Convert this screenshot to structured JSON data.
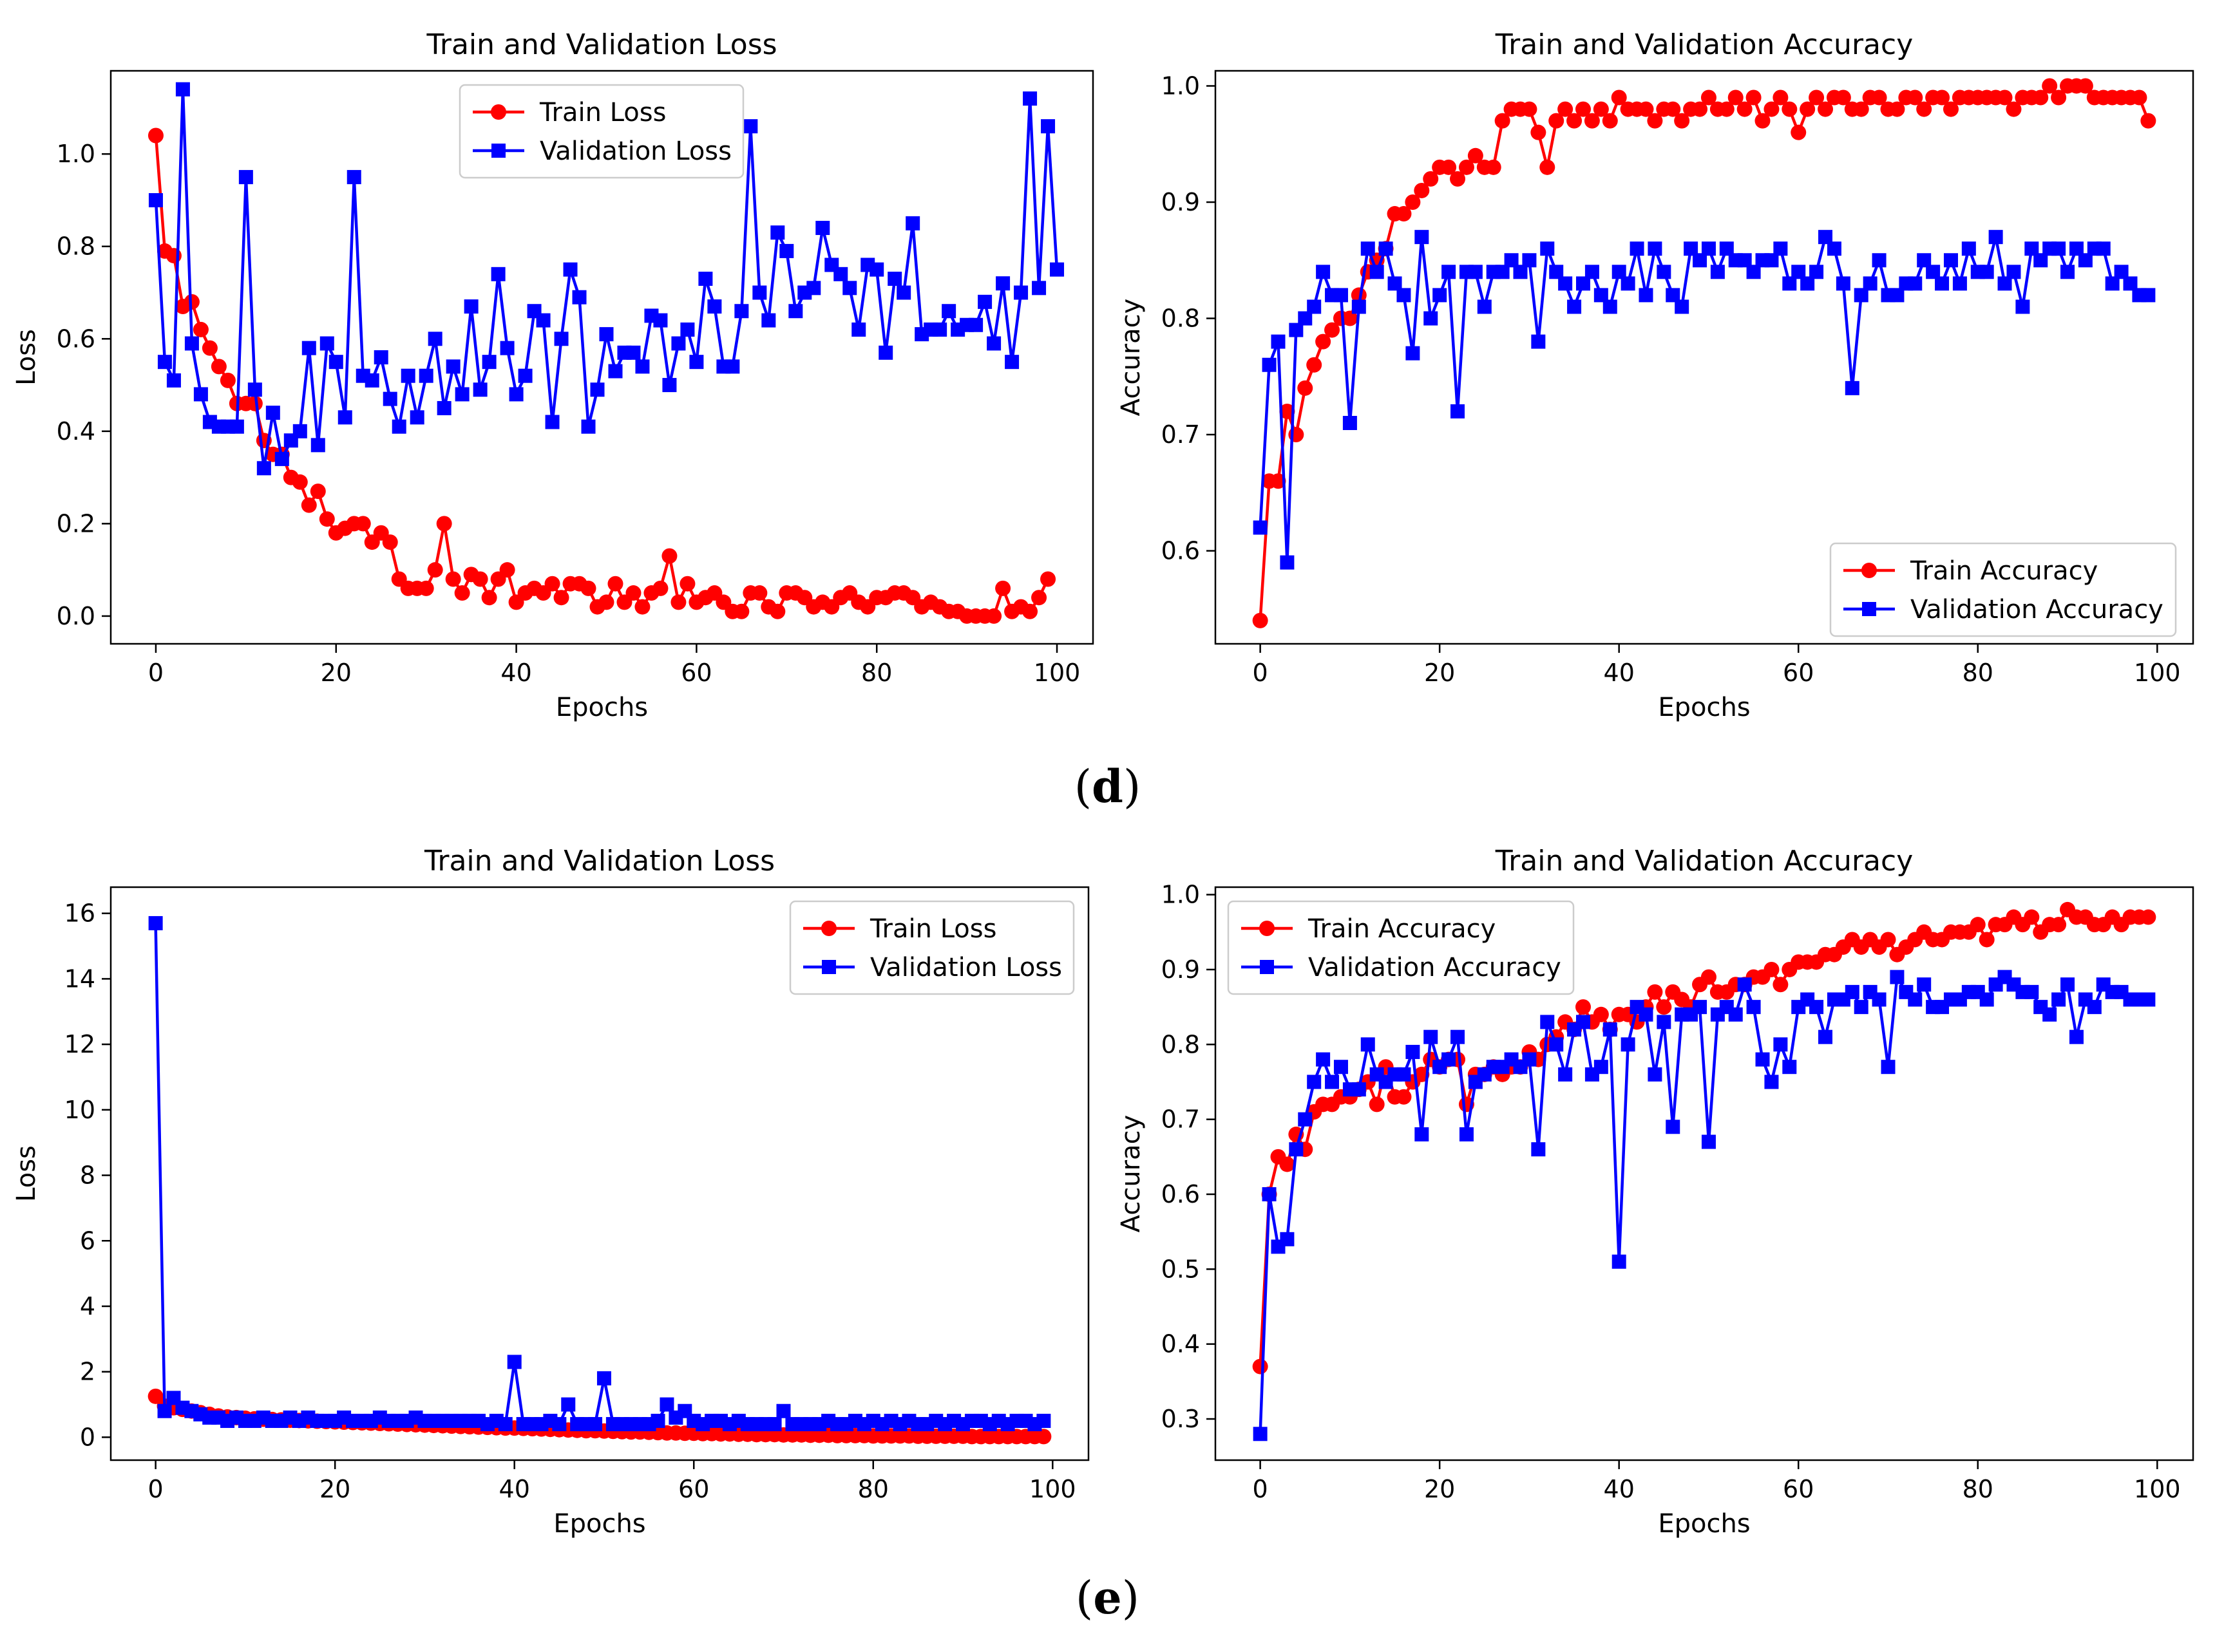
{
  "chart_data": [
    {
      "type": "line",
      "panel": "d",
      "title": "Train and Validation Loss",
      "xlabel": "Epochs",
      "ylabel": "Loss",
      "xlim": [
        -5,
        104
      ],
      "ylim": [
        -0.06,
        1.18
      ],
      "xticks": [
        0,
        20,
        40,
        60,
        80,
        100
      ],
      "xtick_labels": [
        "0",
        "20",
        "40",
        "60",
        "80",
        "100"
      ],
      "yticks": [
        0.0,
        0.2,
        0.4,
        0.6,
        0.8,
        1.0
      ],
      "ytick_labels": [
        "0.0",
        "0.2",
        "0.4",
        "0.6",
        "0.8",
        "1.0"
      ],
      "legend_position": "top-center",
      "series": [
        {
          "name": "Train Loss",
          "color": "#ff0000",
          "marker": "circle",
          "values": [
            1.04,
            0.79,
            0.78,
            0.67,
            0.68,
            0.62,
            0.58,
            0.54,
            0.51,
            0.46,
            0.46,
            0.46,
            0.38,
            0.35,
            0.35,
            0.3,
            0.29,
            0.24,
            0.27,
            0.21,
            0.18,
            0.19,
            0.2,
            0.2,
            0.16,
            0.18,
            0.16,
            0.08,
            0.06,
            0.06,
            0.06,
            0.1,
            0.2,
            0.08,
            0.05,
            0.09,
            0.08,
            0.04,
            0.08,
            0.1,
            0.03,
            0.05,
            0.06,
            0.05,
            0.07,
            0.04,
            0.07,
            0.07,
            0.06,
            0.02,
            0.03,
            0.07,
            0.03,
            0.05,
            0.02,
            0.05,
            0.06,
            0.13,
            0.03,
            0.07,
            0.03,
            0.04,
            0.05,
            0.03,
            0.01,
            0.01,
            0.05,
            0.05,
            0.02,
            0.01,
            0.05,
            0.05,
            0.04,
            0.02,
            0.03,
            0.02,
            0.04,
            0.05,
            0.03,
            0.02,
            0.04,
            0.04,
            0.05,
            0.05,
            0.04,
            0.02,
            0.03,
            0.02,
            0.01,
            0.01,
            0.0,
            0.0,
            0.0,
            0.0,
            0.06,
            0.01,
            0.02,
            0.01,
            0.04,
            0.08
          ]
        },
        {
          "name": "Validation Loss",
          "color": "#0000ff",
          "marker": "square",
          "values": [
            0.9,
            0.55,
            0.51,
            1.14,
            0.59,
            0.48,
            0.42,
            0.41,
            0.41,
            0.41,
            0.95,
            0.49,
            0.32,
            0.44,
            0.34,
            0.38,
            0.4,
            0.58,
            0.37,
            0.59,
            0.55,
            0.43,
            0.95,
            0.52,
            0.51,
            0.56,
            0.47,
            0.41,
            0.52,
            0.43,
            0.52,
            0.6,
            0.45,
            0.54,
            0.48,
            0.67,
            0.49,
            0.55,
            0.74,
            0.58,
            0.48,
            0.52,
            0.66,
            0.64,
            0.42,
            0.6,
            0.75,
            0.69,
            0.41,
            0.49,
            0.61,
            0.53,
            0.57,
            0.57,
            0.54,
            0.65,
            0.64,
            0.5,
            0.59,
            0.62,
            0.55,
            0.73,
            0.67,
            0.54,
            0.54,
            0.66,
            1.06,
            0.7,
            0.64,
            0.83,
            0.79,
            0.66,
            0.7,
            0.71,
            0.84,
            0.76,
            0.74,
            0.71,
            0.62,
            0.76,
            0.75,
            0.57,
            0.73,
            0.7,
            0.85,
            0.61,
            0.62,
            0.62,
            0.66,
            0.62,
            0.63,
            0.63,
            0.68,
            0.59,
            0.72,
            0.55,
            0.7,
            1.12,
            0.71,
            1.06,
            0.75
          ]
        }
      ]
    },
    {
      "type": "line",
      "panel": "d",
      "title": "Train and Validation Accuracy",
      "xlabel": "Epochs",
      "ylabel": "Accuracy",
      "xlim": [
        -5,
        104
      ],
      "ylim": [
        0.52,
        1.013
      ],
      "xticks": [
        0,
        20,
        40,
        60,
        80,
        100
      ],
      "xtick_labels": [
        "0",
        "20",
        "40",
        "60",
        "80",
        "100"
      ],
      "yticks": [
        0.6,
        0.7,
        0.8,
        0.9,
        1.0
      ],
      "ytick_labels": [
        "0.6",
        "0.7",
        "0.8",
        "0.9",
        "1.0"
      ],
      "legend_position": "bottom-right",
      "series": [
        {
          "name": "Train Accuracy",
          "color": "#ff0000",
          "marker": "circle",
          "values": [
            0.54,
            0.66,
            0.66,
            0.72,
            0.7,
            0.74,
            0.76,
            0.78,
            0.79,
            0.8,
            0.8,
            0.82,
            0.84,
            0.85,
            0.86,
            0.89,
            0.89,
            0.9,
            0.91,
            0.92,
            0.93,
            0.93,
            0.92,
            0.93,
            0.94,
            0.93,
            0.93,
            0.97,
            0.98,
            0.98,
            0.98,
            0.96,
            0.93,
            0.97,
            0.98,
            0.97,
            0.98,
            0.97,
            0.98,
            0.97,
            0.99,
            0.98,
            0.98,
            0.98,
            0.97,
            0.98,
            0.98,
            0.97,
            0.98,
            0.98,
            0.99,
            0.98,
            0.98,
            0.99,
            0.98,
            0.99,
            0.97,
            0.98,
            0.99,
            0.98,
            0.96,
            0.98,
            0.99,
            0.98,
            0.99,
            0.99,
            0.98,
            0.98,
            0.99,
            0.99,
            0.98,
            0.98,
            0.99,
            0.99,
            0.98,
            0.99,
            0.99,
            0.98,
            0.99,
            0.99,
            0.99,
            0.99,
            0.99,
            0.99,
            0.98,
            0.99,
            0.99,
            0.99,
            1.0,
            0.99,
            1.0,
            1.0,
            1.0,
            0.99,
            0.99,
            0.99,
            0.99,
            0.99,
            0.99,
            0.97
          ]
        },
        {
          "name": "Validation Accuracy",
          "color": "#0000ff",
          "marker": "square",
          "values": [
            0.62,
            0.76,
            0.78,
            0.59,
            0.79,
            0.8,
            0.81,
            0.84,
            0.82,
            0.82,
            0.71,
            0.81,
            0.86,
            0.84,
            0.86,
            0.83,
            0.82,
            0.77,
            0.87,
            0.8,
            0.82,
            0.84,
            0.72,
            0.84,
            0.84,
            0.81,
            0.84,
            0.84,
            0.85,
            0.84,
            0.85,
            0.78,
            0.86,
            0.84,
            0.83,
            0.81,
            0.83,
            0.84,
            0.82,
            0.81,
            0.84,
            0.83,
            0.86,
            0.82,
            0.86,
            0.84,
            0.82,
            0.81,
            0.86,
            0.85,
            0.86,
            0.84,
            0.86,
            0.85,
            0.85,
            0.84,
            0.85,
            0.85,
            0.86,
            0.83,
            0.84,
            0.83,
            0.84,
            0.87,
            0.86,
            0.83,
            0.74,
            0.82,
            0.83,
            0.85,
            0.82,
            0.82,
            0.83,
            0.83,
            0.85,
            0.84,
            0.83,
            0.85,
            0.83,
            0.86,
            0.84,
            0.84,
            0.87,
            0.83,
            0.84,
            0.81,
            0.86,
            0.85,
            0.86,
            0.86,
            0.84,
            0.86,
            0.85,
            0.86,
            0.86,
            0.83,
            0.84,
            0.83,
            0.82,
            0.82
          ]
        }
      ]
    },
    {
      "type": "line",
      "panel": "e",
      "title": "Train and Validation Loss",
      "xlabel": "Epochs",
      "ylabel": "Loss",
      "xlim": [
        -5,
        104
      ],
      "ylim": [
        -0.7,
        16.8
      ],
      "xticks": [
        0,
        20,
        40,
        60,
        80,
        100
      ],
      "xtick_labels": [
        "0",
        "20",
        "40",
        "60",
        "80",
        "100"
      ],
      "yticks": [
        0,
        2,
        4,
        6,
        8,
        10,
        12,
        14,
        16
      ],
      "ytick_labels": [
        "0",
        "2",
        "4",
        "6",
        "8",
        "10",
        "12",
        "14",
        "16"
      ],
      "legend_position": "top-right",
      "series": [
        {
          "name": "Train Loss",
          "color": "#ff0000",
          "marker": "circle",
          "values": [
            1.25,
            0.95,
            0.9,
            0.85,
            0.8,
            0.75,
            0.7,
            0.65,
            0.62,
            0.6,
            0.58,
            0.56,
            0.55,
            0.54,
            0.53,
            0.52,
            0.51,
            0.5,
            0.49,
            0.48,
            0.47,
            0.46,
            0.45,
            0.44,
            0.43,
            0.42,
            0.41,
            0.4,
            0.39,
            0.38,
            0.37,
            0.36,
            0.35,
            0.34,
            0.33,
            0.32,
            0.31,
            0.3,
            0.29,
            0.28,
            0.28,
            0.27,
            0.26,
            0.25,
            0.24,
            0.23,
            0.22,
            0.21,
            0.2,
            0.2,
            0.19,
            0.18,
            0.17,
            0.16,
            0.16,
            0.15,
            0.14,
            0.13,
            0.13,
            0.12,
            0.12,
            0.11,
            0.11,
            0.1,
            0.1,
            0.09,
            0.09,
            0.08,
            0.08,
            0.08,
            0.07,
            0.07,
            0.07,
            0.06,
            0.06,
            0.06,
            0.05,
            0.05,
            0.05,
            0.05,
            0.04,
            0.04,
            0.04,
            0.04,
            0.04,
            0.03,
            0.03,
            0.03,
            0.03,
            0.03,
            0.03,
            0.02,
            0.02,
            0.02,
            0.02,
            0.02,
            0.02,
            0.02,
            0.02,
            0.02
          ]
        },
        {
          "name": "Validation Loss",
          "color": "#0000ff",
          "marker": "square",
          "values": [
            15.7,
            0.8,
            1.2,
            0.9,
            0.8,
            0.7,
            0.6,
            0.6,
            0.5,
            0.6,
            0.5,
            0.5,
            0.6,
            0.5,
            0.5,
            0.6,
            0.5,
            0.6,
            0.5,
            0.5,
            0.5,
            0.6,
            0.5,
            0.5,
            0.5,
            0.6,
            0.5,
            0.5,
            0.5,
            0.6,
            0.5,
            0.5,
            0.5,
            0.5,
            0.5,
            0.5,
            0.5,
            0.4,
            0.5,
            0.4,
            2.3,
            0.4,
            0.4,
            0.4,
            0.5,
            0.4,
            1.0,
            0.4,
            0.4,
            0.4,
            1.8,
            0.4,
            0.4,
            0.4,
            0.4,
            0.4,
            0.5,
            1.0,
            0.6,
            0.8,
            0.5,
            0.4,
            0.5,
            0.5,
            0.4,
            0.5,
            0.4,
            0.4,
            0.4,
            0.4,
            0.8,
            0.4,
            0.4,
            0.4,
            0.4,
            0.5,
            0.4,
            0.4,
            0.5,
            0.4,
            0.5,
            0.4,
            0.5,
            0.4,
            0.5,
            0.4,
            0.4,
            0.5,
            0.4,
            0.5,
            0.4,
            0.5,
            0.5,
            0.4,
            0.5,
            0.4,
            0.5,
            0.5,
            0.4,
            0.5
          ]
        }
      ]
    },
    {
      "type": "line",
      "panel": "e",
      "title": "Train and Validation Accuracy",
      "xlabel": "Epochs",
      "ylabel": "Accuracy",
      "xlim": [
        -5,
        104
      ],
      "ylim": [
        0.245,
        1.01
      ],
      "xticks": [
        0,
        20,
        40,
        60,
        80,
        100
      ],
      "xtick_labels": [
        "0",
        "20",
        "40",
        "60",
        "80",
        "100"
      ],
      "yticks": [
        0.3,
        0.4,
        0.5,
        0.6,
        0.7,
        0.8,
        0.9,
        1.0
      ],
      "ytick_labels": [
        "0.3",
        "0.4",
        "0.5",
        "0.6",
        "0.7",
        "0.8",
        "0.9",
        "1.0"
      ],
      "legend_position": "top-left",
      "series": [
        {
          "name": "Train Accuracy",
          "color": "#ff0000",
          "marker": "circle",
          "values": [
            0.37,
            0.6,
            0.65,
            0.64,
            0.68,
            0.66,
            0.71,
            0.72,
            0.72,
            0.73,
            0.73,
            0.74,
            0.75,
            0.72,
            0.77,
            0.73,
            0.73,
            0.75,
            0.76,
            0.78,
            0.77,
            0.78,
            0.78,
            0.72,
            0.76,
            0.76,
            0.77,
            0.76,
            0.77,
            0.77,
            0.79,
            0.78,
            0.8,
            0.81,
            0.83,
            0.82,
            0.85,
            0.83,
            0.84,
            0.82,
            0.84,
            0.84,
            0.83,
            0.85,
            0.87,
            0.85,
            0.87,
            0.86,
            0.85,
            0.88,
            0.89,
            0.87,
            0.87,
            0.88,
            0.88,
            0.89,
            0.89,
            0.9,
            0.88,
            0.9,
            0.91,
            0.91,
            0.91,
            0.92,
            0.92,
            0.93,
            0.94,
            0.93,
            0.94,
            0.93,
            0.94,
            0.92,
            0.93,
            0.94,
            0.95,
            0.94,
            0.94,
            0.95,
            0.95,
            0.95,
            0.96,
            0.94,
            0.96,
            0.96,
            0.97,
            0.96,
            0.97,
            0.95,
            0.96,
            0.96,
            0.98,
            0.97,
            0.97,
            0.96,
            0.96,
            0.97,
            0.96,
            0.97,
            0.97,
            0.97
          ]
        },
        {
          "name": "Validation Accuracy",
          "color": "#0000ff",
          "marker": "square",
          "values": [
            0.28,
            0.6,
            0.53,
            0.54,
            0.66,
            0.7,
            0.75,
            0.78,
            0.75,
            0.77,
            0.74,
            0.74,
            0.8,
            0.76,
            0.75,
            0.76,
            0.76,
            0.79,
            0.68,
            0.81,
            0.77,
            0.78,
            0.81,
            0.68,
            0.75,
            0.76,
            0.77,
            0.77,
            0.78,
            0.77,
            0.78,
            0.66,
            0.83,
            0.8,
            0.76,
            0.82,
            0.83,
            0.76,
            0.77,
            0.82,
            0.51,
            0.8,
            0.85,
            0.84,
            0.76,
            0.83,
            0.69,
            0.84,
            0.84,
            0.85,
            0.67,
            0.84,
            0.85,
            0.84,
            0.88,
            0.85,
            0.78,
            0.75,
            0.8,
            0.77,
            0.85,
            0.86,
            0.85,
            0.81,
            0.86,
            0.86,
            0.87,
            0.85,
            0.87,
            0.86,
            0.77,
            0.89,
            0.87,
            0.86,
            0.88,
            0.85,
            0.85,
            0.86,
            0.86,
            0.87,
            0.87,
            0.86,
            0.88,
            0.89,
            0.88,
            0.87,
            0.87,
            0.85,
            0.84,
            0.86,
            0.88,
            0.81,
            0.86,
            0.85,
            0.88,
            0.87,
            0.87,
            0.86,
            0.86,
            0.86
          ]
        }
      ]
    }
  ],
  "panel_labels": {
    "d": {
      "open": "(",
      "letter": "d",
      "close": ")"
    },
    "e": {
      "open": "(",
      "letter": "e",
      "close": ")"
    }
  }
}
